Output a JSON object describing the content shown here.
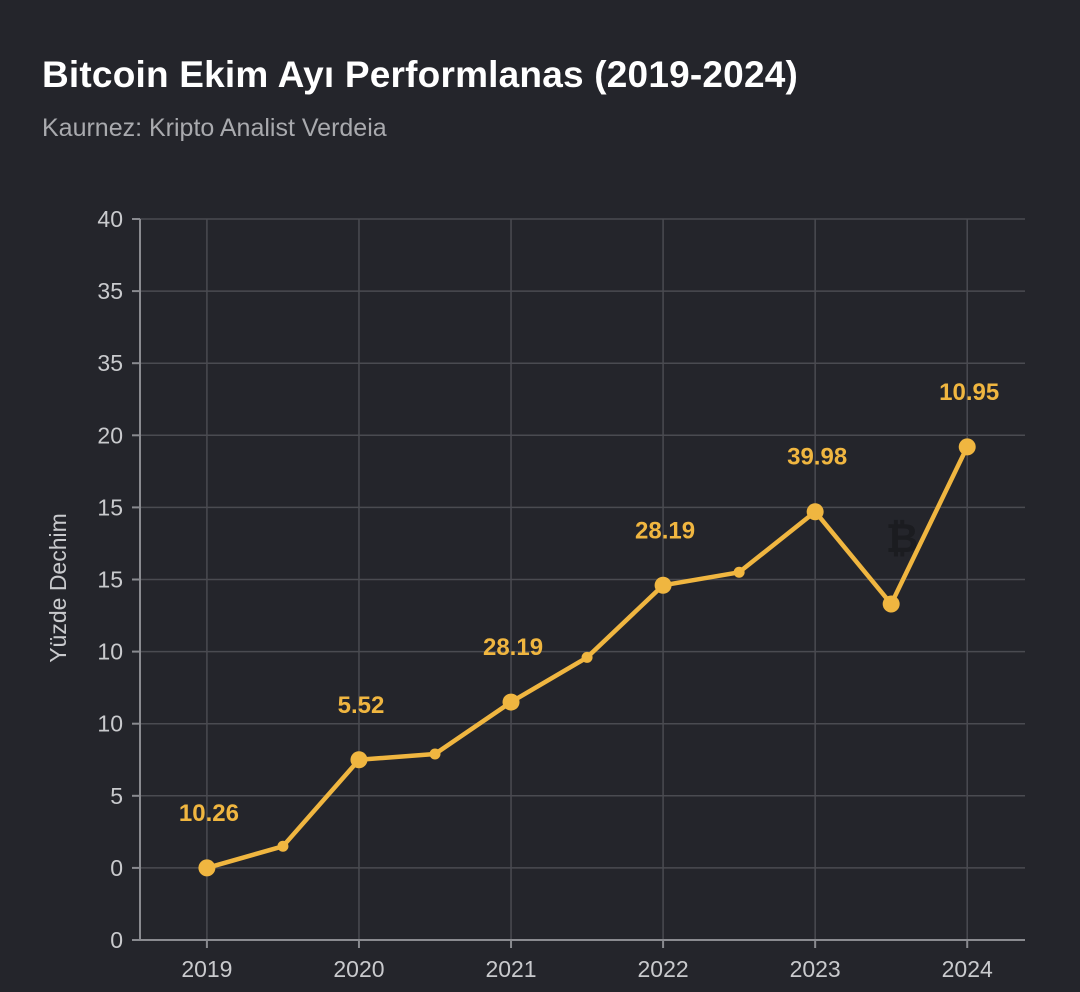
{
  "chart_data": {
    "type": "line",
    "title": "Bitcoin Ekim Ayı Performlanas (2019-2024)",
    "subtitle": "Kaurnez: Kripto Analist Verdeia",
    "xlabel": "",
    "ylabel": "Yüzde Dechim",
    "x_ticks": [
      "2019",
      "2020",
      "2021",
      "2022",
      "2023",
      "2024"
    ],
    "y_tick_labels": [
      "0",
      "0",
      "5",
      "10",
      "10",
      "15",
      "15",
      "20",
      "35",
      "35",
      "40"
    ],
    "grid": true,
    "series": [
      {
        "name": "Bitcoin Ekim",
        "color": "#f0b640",
        "x": [
          2019,
          2019.5,
          2020,
          2020.5,
          2021,
          2021.5,
          2022,
          2022.5,
          2023,
          2023.5,
          2024
        ],
        "y": [
          0,
          1.5,
          7.5,
          7.9,
          11.5,
          14.6,
          19.6,
          20.5,
          24.7,
          18.3,
          29.2
        ],
        "marker_size": [
          "large",
          "small",
          "large",
          "small",
          "large",
          "small",
          "large",
          "small",
          "large",
          "large",
          "large"
        ]
      }
    ],
    "annotations": [
      {
        "x": 2019,
        "y": 0,
        "text": "10.26"
      },
      {
        "x": 2020,
        "y": 7.5,
        "text": "5.52"
      },
      {
        "x": 2021,
        "y": 11.5,
        "text": "28.19"
      },
      {
        "x": 2022,
        "y": 19.6,
        "text": "28.19"
      },
      {
        "x": 2023,
        "y": 24.7,
        "text": "39.98"
      },
      {
        "x": 2024,
        "y": 29.2,
        "text": "10.95"
      }
    ],
    "ylim": [
      -5,
      45
    ],
    "xlim": [
      2018.56,
      2024.38
    ]
  },
  "icons": {
    "watermark": "bitcoin-icon"
  }
}
